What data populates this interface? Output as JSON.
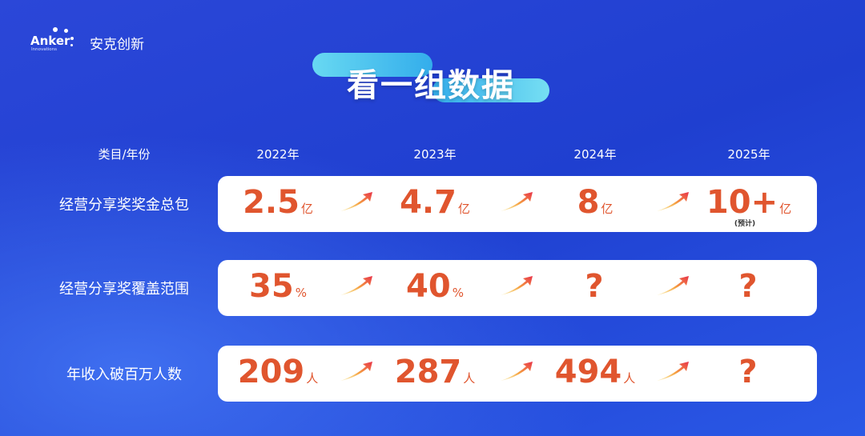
{
  "brand": {
    "logo_text": "Anker",
    "logo_sub": "Innovations",
    "name": "安克创新"
  },
  "title": "看一组数据",
  "header": {
    "category": "类目/年份",
    "years": [
      "2022年",
      "2023年",
      "2024年",
      "2025年"
    ]
  },
  "rows": [
    {
      "label": "经营分享奖奖金总包",
      "values": [
        {
          "v": "2.5",
          "u": "亿"
        },
        {
          "v": "4.7",
          "u": "亿"
        },
        {
          "v": "8",
          "u": "亿"
        },
        {
          "v": "10+",
          "u": "亿",
          "note": "(预计)"
        }
      ]
    },
    {
      "label": "经营分享奖覆盖范围",
      "values": [
        {
          "v": "35",
          "u": "%"
        },
        {
          "v": "40",
          "u": "%"
        },
        {
          "v": "?",
          "u": ""
        },
        {
          "v": "?",
          "u": ""
        }
      ]
    },
    {
      "label": "年收入破百万人数",
      "values": [
        {
          "v": "209",
          "u": "人"
        },
        {
          "v": "287",
          "u": "人"
        },
        {
          "v": "494",
          "u": "人"
        },
        {
          "v": "?",
          "u": ""
        }
      ]
    }
  ],
  "colors": {
    "value": "#e0552e",
    "arrow_start": "#f5d24a",
    "arrow_end": "#e8334a",
    "background": "#2344d6"
  },
  "icons": {
    "trend": "trend-up-arrow-icon"
  }
}
